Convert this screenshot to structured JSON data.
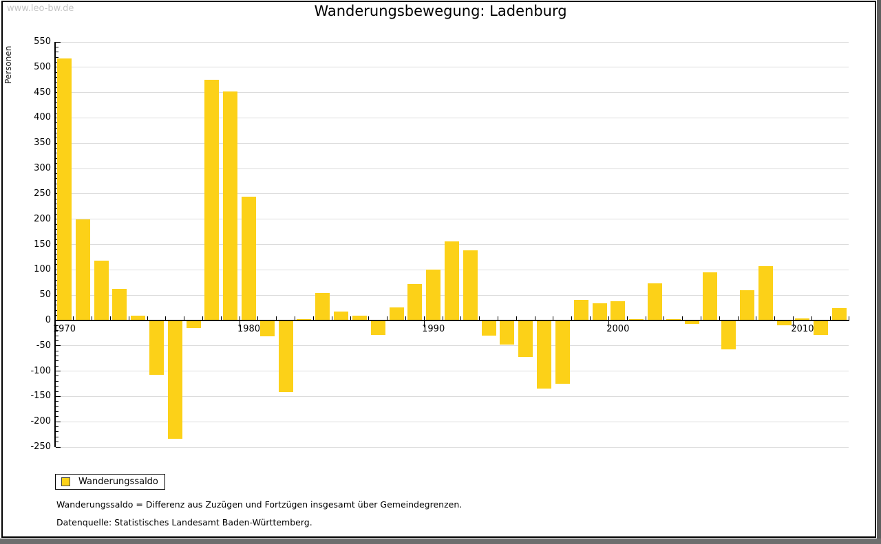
{
  "watermark": "www.leo-bw.de",
  "title": "Wanderungsbewegung: Ladenburg",
  "y_axis_label": "Personen",
  "legend": {
    "label": "Wanderungssaldo",
    "swatch_color": "#FCD118"
  },
  "footnotes": {
    "line1": "Wanderungssaldo = Differenz aus Zuzügen und Fortzügen insgesamt über Gemeindegrenzen.",
    "line2": "Datenquelle: Statistisches Landesamt Baden-Württemberg."
  },
  "colors": {
    "bar": "#FCD118",
    "gridline": "#dcdcdc",
    "axis": "#000000",
    "watermark_text": "#c5c5c5",
    "shadow": "#6e6e6e"
  },
  "chart_data": {
    "type": "bar",
    "title": "Wanderungsbewegung: Ladenburg",
    "ylabel": "Personen",
    "xlabel": "",
    "series_name": "Wanderungssaldo",
    "years": [
      1970,
      1971,
      1972,
      1973,
      1974,
      1975,
      1976,
      1977,
      1978,
      1979,
      1980,
      1981,
      1982,
      1983,
      1984,
      1985,
      1986,
      1987,
      1988,
      1989,
      1990,
      1991,
      1992,
      1993,
      1994,
      1995,
      1996,
      1997,
      1998,
      1999,
      2000,
      2001,
      2002,
      2003,
      2004,
      2005,
      2006,
      2007,
      2008,
      2009,
      2010,
      2011,
      2012
    ],
    "values": [
      517,
      200,
      118,
      62,
      10,
      -107,
      -234,
      -15,
      475,
      452,
      245,
      -31,
      -142,
      2,
      54,
      18,
      9,
      -28,
      26,
      72,
      101,
      156,
      139,
      -30,
      -47,
      -72,
      -135,
      -125,
      41,
      34,
      38,
      3,
      73,
      3,
      -7,
      95,
      -57,
      59,
      107,
      -10,
      4,
      -29,
      25
    ],
    "ylim": [
      -250,
      550
    ],
    "ytick_step": 50,
    "ytick_minor_step": 10,
    "decade_labels": [
      "1970",
      "1980",
      "1990",
      "2000",
      "2010"
    ],
    "grid": true,
    "legend_position": "bottom-left",
    "bar_color": "#FCD118"
  }
}
